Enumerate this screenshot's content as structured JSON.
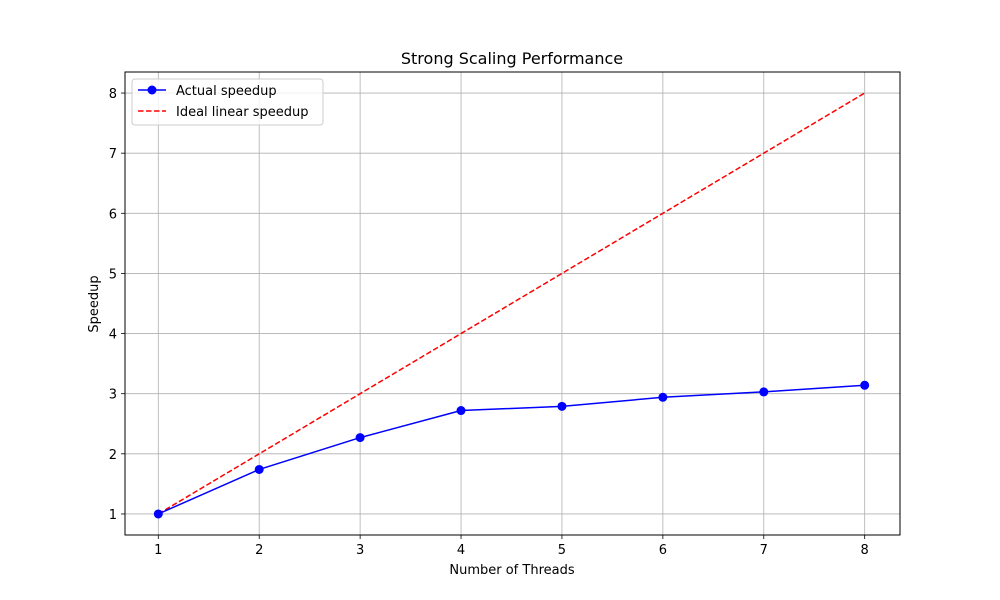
{
  "chart_data": {
    "type": "line",
    "title": "Strong Scaling Performance",
    "xlabel": "Number of Threads",
    "ylabel": "Speedup",
    "xlim": [
      0.67,
      8.35
    ],
    "ylim": [
      0.65,
      8.35
    ],
    "x": [
      1,
      2,
      3,
      4,
      5,
      6,
      7,
      8
    ],
    "xticks": [
      "1",
      "2",
      "3",
      "4",
      "5",
      "6",
      "7",
      "8"
    ],
    "yticks": [
      "1",
      "2",
      "3",
      "4",
      "5",
      "6",
      "7",
      "8"
    ],
    "grid": true,
    "legend_position": "top-left",
    "series": [
      {
        "name": "Actual speedup",
        "values": [
          1.0,
          1.74,
          2.27,
          2.72,
          2.79,
          2.94,
          3.03,
          3.14
        ],
        "color": "#0000ff",
        "style": "solid",
        "marker": "circle"
      },
      {
        "name": "Ideal linear speedup",
        "values": [
          1,
          2,
          3,
          4,
          5,
          6,
          7,
          8
        ],
        "color": "#ff0000",
        "style": "dashed",
        "marker": "none"
      }
    ]
  }
}
